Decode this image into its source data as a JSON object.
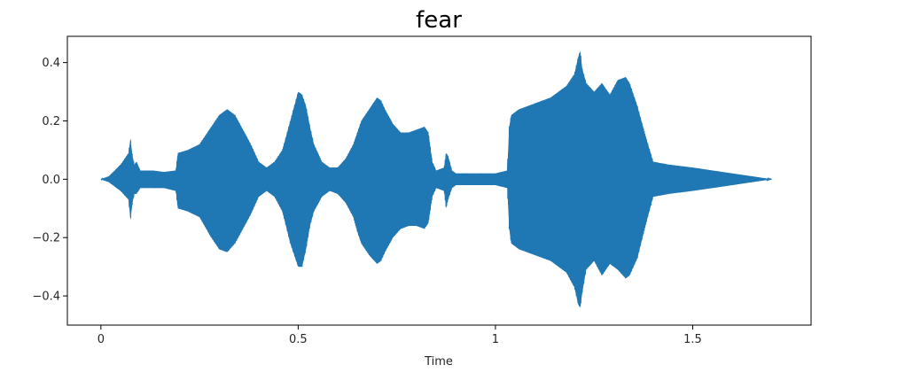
{
  "chart_data": {
    "type": "area",
    "title": "fear",
    "xlabel": "Time",
    "ylabel": "",
    "xlim": [
      -0.085,
      1.8
    ],
    "ylim": [
      -0.5,
      0.49
    ],
    "xticks": [
      0,
      0.5,
      1,
      1.5
    ],
    "xtick_labels": [
      "0",
      "0.5",
      "1",
      "1.5"
    ],
    "yticks": [
      0.4,
      0.2,
      0.0,
      -0.2,
      -0.4
    ],
    "ytick_labels": [
      "0.4",
      "0.2",
      "0.0",
      "−0.2",
      "−0.4"
    ],
    "grid": false,
    "series": [
      {
        "color": "#1f77b4",
        "x": [
          0,
          0.02,
          0.05,
          0.07,
          0.075,
          0.08,
          0.085,
          0.09,
          0.1,
          0.13,
          0.16,
          0.19,
          0.195,
          0.22,
          0.25,
          0.28,
          0.3,
          0.32,
          0.34,
          0.36,
          0.38,
          0.4,
          0.42,
          0.44,
          0.46,
          0.48,
          0.5,
          0.51,
          0.52,
          0.53,
          0.54,
          0.56,
          0.58,
          0.6,
          0.62,
          0.64,
          0.65,
          0.66,
          0.68,
          0.7,
          0.71,
          0.72,
          0.74,
          0.76,
          0.78,
          0.8,
          0.82,
          0.83,
          0.84,
          0.85,
          0.87,
          0.875,
          0.88,
          0.89,
          0.9,
          0.95,
          1.0,
          1.03,
          1.035,
          1.04,
          1.06,
          1.1,
          1.14,
          1.18,
          1.2,
          1.21,
          1.215,
          1.22,
          1.23,
          1.25,
          1.27,
          1.29,
          1.31,
          1.33,
          1.34,
          1.36,
          1.38,
          1.4,
          1.44,
          1.5,
          1.55,
          1.6,
          1.65,
          1.7
        ],
        "upper": [
          0.0,
          0.01,
          0.05,
          0.09,
          0.14,
          0.08,
          0.05,
          0.06,
          0.03,
          0.03,
          0.025,
          0.03,
          0.09,
          0.1,
          0.12,
          0.18,
          0.22,
          0.24,
          0.22,
          0.17,
          0.12,
          0.06,
          0.04,
          0.06,
          0.1,
          0.2,
          0.3,
          0.29,
          0.25,
          0.18,
          0.12,
          0.06,
          0.04,
          0.04,
          0.07,
          0.12,
          0.16,
          0.2,
          0.24,
          0.28,
          0.27,
          0.24,
          0.19,
          0.16,
          0.16,
          0.17,
          0.18,
          0.16,
          0.06,
          0.03,
          0.04,
          0.09,
          0.08,
          0.03,
          0.02,
          0.02,
          0.02,
          0.03,
          0.18,
          0.22,
          0.24,
          0.26,
          0.28,
          0.32,
          0.36,
          0.42,
          0.44,
          0.38,
          0.33,
          0.3,
          0.33,
          0.29,
          0.34,
          0.35,
          0.33,
          0.25,
          0.15,
          0.06,
          0.05,
          0.04,
          0.03,
          0.02,
          0.01,
          0.0
        ],
        "lower": [
          0.0,
          -0.01,
          -0.04,
          -0.07,
          -0.14,
          -0.08,
          -0.05,
          -0.05,
          -0.03,
          -0.03,
          -0.03,
          -0.04,
          -0.1,
          -0.11,
          -0.13,
          -0.2,
          -0.24,
          -0.25,
          -0.22,
          -0.17,
          -0.12,
          -0.06,
          -0.04,
          -0.06,
          -0.11,
          -0.22,
          -0.3,
          -0.3,
          -0.24,
          -0.16,
          -0.11,
          -0.06,
          -0.04,
          -0.05,
          -0.08,
          -0.13,
          -0.18,
          -0.22,
          -0.26,
          -0.29,
          -0.28,
          -0.25,
          -0.2,
          -0.17,
          -0.16,
          -0.16,
          -0.17,
          -0.15,
          -0.06,
          -0.03,
          -0.04,
          -0.1,
          -0.07,
          -0.03,
          -0.02,
          -0.02,
          -0.02,
          -0.03,
          -0.17,
          -0.22,
          -0.24,
          -0.26,
          -0.28,
          -0.32,
          -0.37,
          -0.43,
          -0.44,
          -0.39,
          -0.31,
          -0.28,
          -0.33,
          -0.29,
          -0.31,
          -0.34,
          -0.33,
          -0.27,
          -0.16,
          -0.06,
          -0.05,
          -0.04,
          -0.03,
          -0.02,
          -0.01,
          0.0
        ]
      }
    ]
  }
}
